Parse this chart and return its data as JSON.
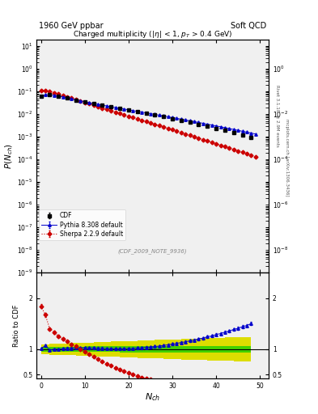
{
  "title_left": "1960 GeV ppbar",
  "title_right": "Soft QCD",
  "main_title": "Charged multiplicity (|\\eta| < 1, p_{T} > 0.4 GeV)",
  "ylabel_main": "P(N_{ch})",
  "ylabel_ratio": "Ratio to CDF",
  "xlabel": "N_{ch}",
  "right_label1": "Rivet 3.1.10, ≥ 2.9M events",
  "right_label2": "mcplots.cern.ch [arXiv:1306.3436]",
  "ref_label": "(CDF_2009_NOTE_9936)",
  "background_color": "#ffffff",
  "plot_bg": "#f0f0f0",
  "cdf_color": "#000000",
  "pythia_color": "#0000cc",
  "sherpa_color": "#cc0000",
  "band_green": "#00bb00",
  "band_yellow": "#dddd00",
  "ylim_main": [
    1e-09,
    20.0
  ],
  "ylim_ratio": [
    0.42,
    2.5
  ],
  "xlim": [
    -1,
    52
  ]
}
